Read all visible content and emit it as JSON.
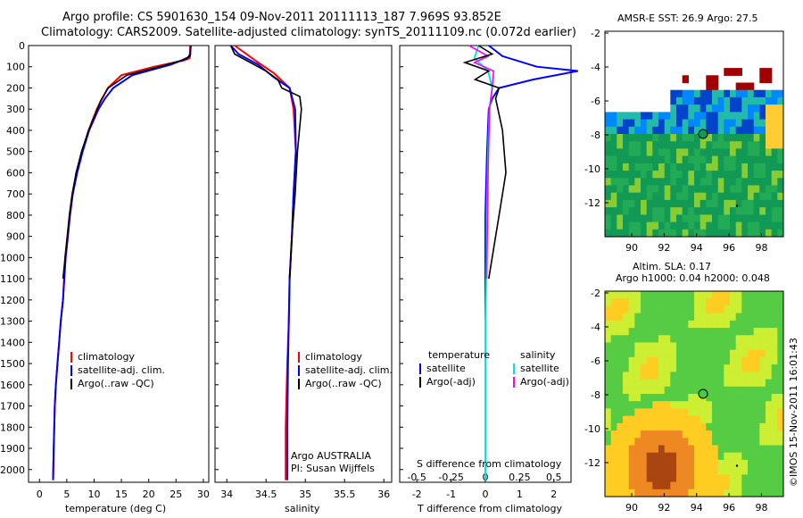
{
  "header": {
    "line1": "Argo profile: CS 5901630_154 09-Nov-2011 20111113_187 7.969S 93.852E",
    "line2": "Climatology: CARS2009. Satellite-adjusted climatology: synTS_20111109.nc (0.072d earlier)"
  },
  "panels": {
    "temperature": {
      "xlabel": "temperature (deg C)",
      "xticks": [
        "0",
        "5",
        "10",
        "15",
        "20",
        "25",
        "30"
      ],
      "legend": [
        "climatology",
        "satellite-adj. clim.",
        "Argo(..raw -QC)"
      ]
    },
    "salinity": {
      "xlabel": "salinity",
      "xticks": [
        "34",
        "34.5",
        "35",
        "35.5",
        "36"
      ],
      "legend": [
        "climatology",
        "satellite-adj. clim.",
        "Argo(..raw -QC)"
      ],
      "note1": "Argo AUSTRALIA",
      "note2": "PI: Susan Wijffels"
    },
    "difference": {
      "xlabel": "T difference from climatology",
      "xticks": [
        "-2",
        "-1",
        "0",
        "1",
        "2"
      ],
      "top_label": "S difference from climatology",
      "top_ticks": [
        "-0.5",
        "-0.25",
        "0",
        "0.25",
        "0.5"
      ],
      "legend_left_title": "temperature",
      "legend_left": [
        "satellite",
        "Argo(-adj)"
      ],
      "legend_right_title": "salinity",
      "legend_right": [
        "satellite",
        "Argo(-adj)"
      ]
    },
    "sst_map": {
      "title": "AMSR-E SST: 26.9  Argo: 27.5",
      "yticks": [
        "-2",
        "-4",
        "-6",
        "-8",
        "-10",
        "-12"
      ],
      "xticks": [
        "90",
        "92",
        "94",
        "96",
        "98"
      ]
    },
    "sla_map": {
      "title1": "Altim. SLA: 0.17",
      "title2": "Argo h1000: 0.04 h2000: 0.048",
      "yticks": [
        "-2",
        "-4",
        "-6",
        "-8",
        "-10",
        "-12"
      ],
      "xticks": [
        "90",
        "92",
        "94",
        "96",
        "98"
      ]
    }
  },
  "depth_ticks": [
    "0",
    "100",
    "200",
    "300",
    "400",
    "500",
    "600",
    "700",
    "800",
    "900",
    "1000",
    "1100",
    "1200",
    "1300",
    "1400",
    "1500",
    "1600",
    "1700",
    "1800",
    "1900",
    "2000"
  ],
  "credit": "©IMOS 15-Nov-2011 16:01:43",
  "colors": {
    "clim": "#ff0000",
    "sat": "#0000ff",
    "argo": "#000000",
    "cyan": "#00e5e5",
    "magenta": "#ff00ff"
  },
  "chart_data": [
    {
      "type": "line",
      "title": "",
      "xlabel": "temperature (deg C)",
      "ylabel": "",
      "xlim": [
        -2,
        31
      ],
      "ylim": [
        2060,
        0
      ],
      "y_reversed": true,
      "series": [
        {
          "name": "climatology",
          "x": [
            27.6,
            27.5,
            26.5,
            21,
            15,
            12.5,
            11.5,
            10.5,
            9,
            7.8,
            6.8,
            6,
            5.5,
            5.1,
            4.7,
            4.3,
            3.9,
            3.6,
            3.3,
            3.0,
            2.8,
            2.6,
            2.5
          ],
          "y": [
            0,
            60,
            70,
            100,
            140,
            200,
            250,
            300,
            400,
            500,
            600,
            700,
            800,
            900,
            1000,
            1200,
            1300,
            1400,
            1500,
            1600,
            1700,
            1900,
            2050
          ]
        },
        {
          "name": "satellite-adj. clim.",
          "x": [
            27.7,
            27.6,
            27.1,
            24,
            17,
            13.5,
            12,
            10.8,
            9.1,
            7.9,
            6.9,
            6.1,
            5.6,
            5.2,
            4.8,
            4.3,
            3.9,
            3.6,
            3.3,
            3.0,
            2.8,
            2.6,
            2.5
          ],
          "y": [
            0,
            40,
            60,
            90,
            140,
            200,
            250,
            300,
            400,
            500,
            600,
            700,
            800,
            900,
            1000,
            1200,
            1300,
            1400,
            1500,
            1600,
            1700,
            1900,
            2050
          ]
        },
        {
          "name": "Argo(..raw -QC)",
          "x": [
            27.7,
            27.6,
            26,
            22,
            16,
            12.6,
            11.2,
            10.6,
            9,
            7.7,
            6.7,
            6,
            5.5,
            5.1,
            4.7,
            4.3
          ],
          "y": [
            0,
            50,
            70,
            100,
            140,
            200,
            260,
            300,
            400,
            500,
            600,
            700,
            800,
            900,
            1000,
            1100
          ]
        }
      ]
    },
    {
      "type": "line",
      "title": "",
      "xlabel": "salinity",
      "ylabel": "",
      "xlim": [
        33.85,
        36.1
      ],
      "ylim": [
        2060,
        0
      ],
      "y_reversed": true,
      "series": [
        {
          "name": "climatology",
          "x": [
            34.1,
            34.4,
            34.6,
            34.8,
            34.85,
            34.88,
            34.85,
            34.83,
            34.8,
            34.79,
            34.77,
            34.75,
            34.75
          ],
          "y": [
            0,
            80,
            130,
            200,
            300,
            500,
            700,
            900,
            1100,
            1300,
            1500,
            1800,
            2050
          ]
        },
        {
          "name": "satellite-adj. clim.",
          "x": [
            34.05,
            34.15,
            34.4,
            34.6,
            34.8,
            34.87,
            34.88,
            34.85,
            34.83,
            34.8,
            34.79,
            34.78,
            34.77,
            34.77
          ],
          "y": [
            0,
            40,
            90,
            150,
            200,
            300,
            500,
            700,
            900,
            1100,
            1300,
            1500,
            1800,
            2050
          ]
        },
        {
          "name": "Argo(..raw -QC)",
          "x": [
            34.05,
            34.1,
            34.3,
            34.5,
            34.65,
            34.7,
            34.93,
            34.95,
            34.9,
            34.87,
            34.83,
            34.8
          ],
          "y": [
            0,
            40,
            80,
            120,
            160,
            200,
            240,
            300,
            500,
            700,
            900,
            1100
          ]
        }
      ]
    },
    {
      "type": "line",
      "title": "",
      "xlabel": "T difference from climatology",
      "ylabel": "",
      "xlim": [
        -2.5,
        2.5
      ],
      "ylim": [
        2060,
        0
      ],
      "y_reversed": true,
      "series": [
        {
          "name": "satellite",
          "x": [
            0.1,
            0.5,
            1.5,
            2.7,
            1.4,
            0.4,
            0.2,
            0.1,
            0.05,
            0.0,
            0.0,
            0.0,
            0.0
          ],
          "y": [
            0,
            50,
            100,
            120,
            160,
            200,
            250,
            300,
            500,
            800,
            1200,
            1600,
            2050
          ]
        },
        {
          "name": "Argo(-adj)",
          "x": [
            -0.2,
            0.2,
            -0.6,
            0.1,
            -0.3,
            0.4,
            0.3,
            0.5,
            0.6,
            0.5,
            0.4,
            0.3,
            0.1
          ],
          "y": [
            0,
            40,
            80,
            120,
            160,
            200,
            250,
            400,
            600,
            700,
            800,
            900,
            1100
          ]
        }
      ]
    },
    {
      "type": "line",
      "title": "",
      "xlabel": "S difference from climatology",
      "ylabel": "",
      "xlim": [
        -0.625,
        0.625
      ],
      "ylim": [
        2060,
        0
      ],
      "y_reversed": true,
      "series": [
        {
          "name": "satellite",
          "x": [
            -0.05,
            -0.08,
            0.02,
            0.05,
            0.03,
            0.02,
            0.01,
            0.01,
            0.0,
            0.0,
            0.0,
            0.0
          ],
          "y": [
            0,
            60,
            120,
            200,
            300,
            500,
            800,
            1000,
            1300,
            1600,
            1800,
            2050
          ]
        },
        {
          "name": "Argo(-adj)",
          "x": [
            -0.12,
            0.02,
            -0.08,
            0.06,
            0.05,
            0.03,
            0.02,
            0.01
          ],
          "y": [
            0,
            50,
            80,
            120,
            200,
            300,
            600,
            1100
          ]
        }
      ]
    }
  ]
}
